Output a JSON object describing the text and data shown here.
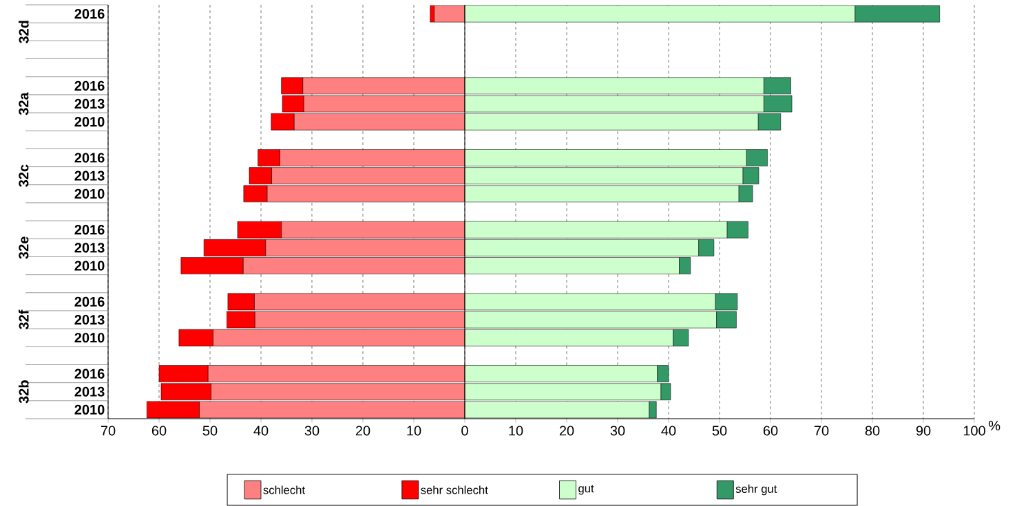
{
  "chart_data": {
    "type": "bar",
    "orientation": "horizontal",
    "stacked": true,
    "categories": [
      "2016",
      null,
      null,
      null,
      "2016",
      "2013",
      "2010",
      null,
      "2016",
      "2013",
      "2010",
      null,
      "2016",
      "2013",
      "2010",
      null,
      "2016",
      "2013",
      "2010",
      null,
      "2016",
      "2013",
      "2010"
    ],
    "series": [
      {
        "name": "schlecht",
        "color": "#ff8080",
        "values": [
          -6.0,
          null,
          null,
          null,
          -31.8,
          -31.6,
          -33.5,
          null,
          -36.3,
          -37.9,
          -38.8,
          null,
          -36.0,
          -39.1,
          -43.5,
          null,
          -41.3,
          -41.2,
          -49.4,
          null,
          -50.4,
          -49.8,
          -52.1
        ]
      },
      {
        "name": "sehr schlecht",
        "color": "#ff0000",
        "values": [
          -0.8,
          null,
          null,
          null,
          -4.2,
          -4.2,
          -4.5,
          null,
          -4.3,
          -4.4,
          -4.6,
          null,
          -8.6,
          -12.1,
          -12.2,
          null,
          -5.2,
          -5.5,
          -6.7,
          null,
          -9.6,
          -9.8,
          -10.3
        ]
      },
      {
        "name": "gut",
        "color": "#ccffcc",
        "values": [
          76.6,
          null,
          null,
          null,
          58.7,
          58.7,
          57.6,
          null,
          55.3,
          54.6,
          53.8,
          null,
          51.5,
          45.9,
          42.1,
          null,
          49.2,
          49.4,
          40.9,
          null,
          37.8,
          38.5,
          36.2
        ]
      },
      {
        "name": "sehr gut",
        "color": "#339966",
        "values": [
          16.6,
          null,
          null,
          null,
          5.3,
          5.5,
          4.4,
          null,
          4.1,
          3.1,
          2.7,
          null,
          4.1,
          3.0,
          2.2,
          null,
          4.3,
          3.9,
          3.0,
          null,
          2.2,
          1.9,
          1.4
        ]
      }
    ],
    "annotations": [
      "32d",
      "32a",
      "32c",
      "32e",
      "32f",
      "32b"
    ],
    "xlabel": "%",
    "xlim": [
      -70,
      100
    ],
    "xticks": [
      {
        "value": -70,
        "label": "70"
      },
      {
        "value": -60,
        "label": "60"
      },
      {
        "value": -50,
        "label": "50"
      },
      {
        "value": -40,
        "label": "40"
      },
      {
        "value": -30,
        "label": "30"
      },
      {
        "value": -20,
        "label": "20"
      },
      {
        "value": -10,
        "label": "10"
      },
      0,
      10,
      20,
      30,
      40,
      50,
      60,
      70,
      80,
      90,
      100
    ],
    "grid": "x",
    "legend": "bottom"
  }
}
